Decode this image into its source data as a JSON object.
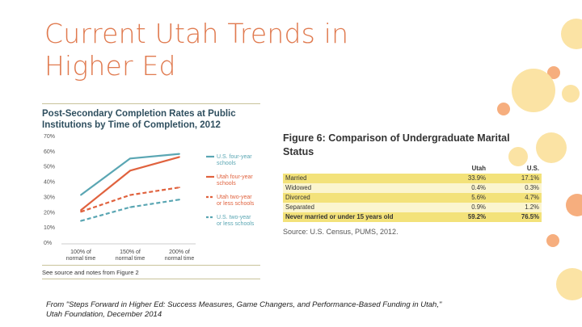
{
  "slide": {
    "title_line1": "Current Utah Trends in",
    "title_line2": "Higher Ed",
    "footnote_line1": "From \"Steps Forward in Higher Ed: Success Measures, Game Changers, and Performance-Based Funding in Utah,\"",
    "footnote_line2": "Utah Foundation, December 2014"
  },
  "colors": {
    "accent_orange": "#e07a4f",
    "dot_orange": "#f6ae7e",
    "dot_yellow": "#fbe3a4",
    "teal": "#5aa6b3",
    "red": "#e0623e",
    "table_yellow": "#f3e27a"
  },
  "chart_data": {
    "type": "line",
    "title_line1": "Post-Secondary Completion Rates at Public",
    "title_line2": "Institutions by Time of Completion, 2012",
    "categories": [
      [
        "100% of",
        "normal time"
      ],
      [
        "150% of",
        "normal time"
      ],
      [
        "200% of",
        "normal time"
      ]
    ],
    "y_ticks": [
      "0%",
      "10%",
      "20%",
      "30%",
      "40%",
      "50%",
      "60%",
      "70%"
    ],
    "ylim": [
      0,
      70
    ],
    "series": [
      {
        "name_line1": "U.S. four-year",
        "name_line2": "schools",
        "color": "#5aa6b3",
        "dashed": false,
        "values": [
          31,
          55,
          58
        ]
      },
      {
        "name_line1": "Utah four-year",
        "name_line2": "schools",
        "color": "#e0623e",
        "dashed": false,
        "values": [
          21,
          47,
          56
        ]
      },
      {
        "name_line1": "Utah two-year",
        "name_line2": "or less schools",
        "color": "#e0623e",
        "dashed": true,
        "values": [
          20,
          31,
          36
        ]
      },
      {
        "name_line1": "U.S. two-year",
        "name_line2": "or less schools",
        "color": "#5aa6b3",
        "dashed": true,
        "values": [
          14,
          23,
          28
        ]
      }
    ],
    "note": "See source and notes from Figure 2"
  },
  "marital_table": {
    "title_line1": "Figure 6: Comparison of Undergraduate Marital",
    "title_line2": "Status",
    "col_utah": "Utah",
    "col_us": "U.S.",
    "rows": [
      {
        "label": "Married",
        "utah": "33.9%",
        "us": "17.1%"
      },
      {
        "label": "Widowed",
        "utah": "0.4%",
        "us": "0.3%"
      },
      {
        "label": "Divorced",
        "utah": "5.6%",
        "us": "4.7%"
      },
      {
        "label": "Separated",
        "utah": "0.9%",
        "us": "1.2%"
      },
      {
        "label": "Never married or under 15 years old",
        "utah": "59.2%",
        "us": "76.5%"
      }
    ],
    "source": "Source: U.S. Census, PUMS, 2012."
  }
}
